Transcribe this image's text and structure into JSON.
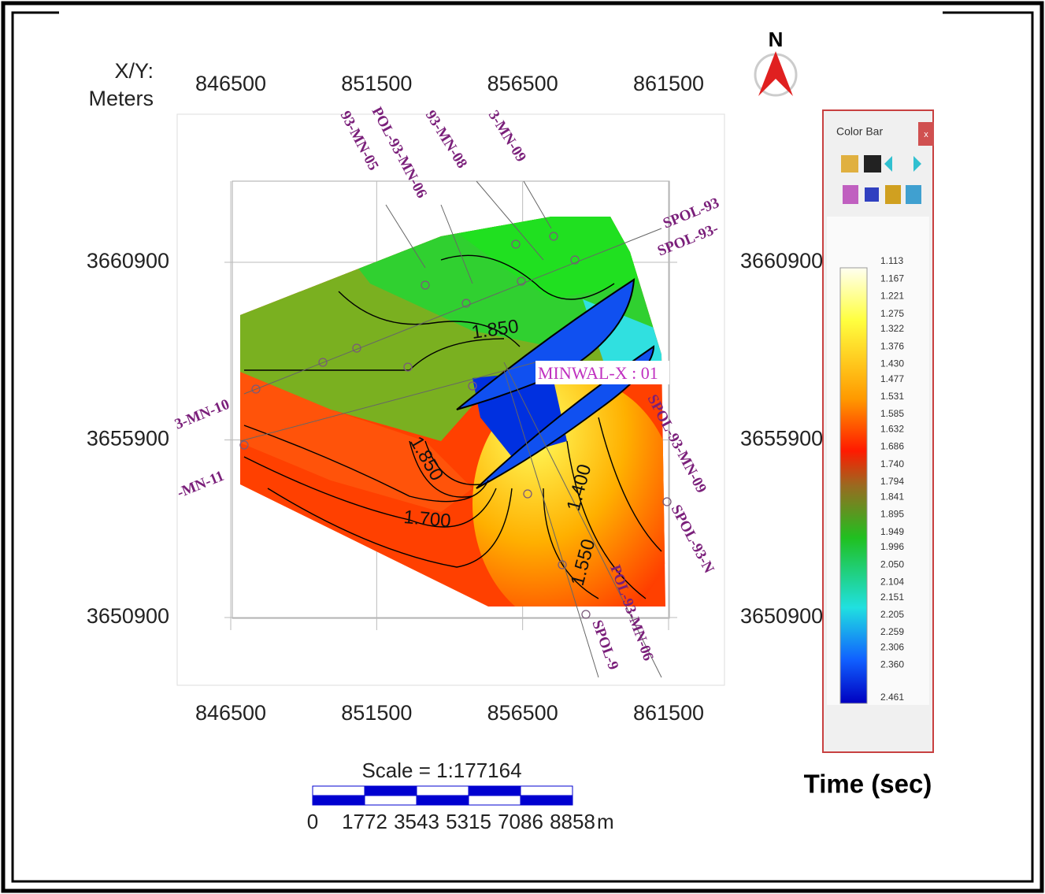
{
  "map": {
    "axis_label": [
      "X/Y:",
      "Meters"
    ],
    "x_ticks": [
      846500,
      851500,
      856500,
      861500
    ],
    "y_ticks": [
      3660900,
      3655900,
      3650900
    ],
    "north": "N",
    "seismic_lines": [
      "93-MN-05",
      "POL-93-MN-06",
      "93-MN-08",
      "3-MN-09",
      "SPOL-93",
      "SPOL-93-",
      "3-MN-10",
      "-MN-11",
      "SPOL-93-MN-09",
      "SPOL-93-N",
      "POL-93-MN-06",
      "SPOL-9"
    ],
    "well": "MINWAL-X : 01",
    "contour_labels": [
      "1.850",
      "1.850",
      "1.700",
      "1.400",
      "1.550"
    ],
    "scale": {
      "title": "Scale = 1:177164",
      "ticks": [
        0,
        1772,
        3543,
        5315,
        7086,
        8858
      ],
      "unit": "m"
    }
  },
  "color_bar": {
    "title": "Color Bar",
    "close": "x",
    "labels": [
      "1.113",
      "1.167",
      "1.221",
      "1.275",
      "1.322",
      "1.376",
      "1.430",
      "1.477",
      "1.531",
      "1.585",
      "1.632",
      "1.686",
      "1.740",
      "1.794",
      "1.841",
      "1.895",
      "1.949",
      "1.996",
      "2.050",
      "2.104",
      "2.151",
      "2.205",
      "2.259",
      "2.306",
      "2.360",
      "2.461"
    ],
    "caption": "Time (sec)"
  }
}
